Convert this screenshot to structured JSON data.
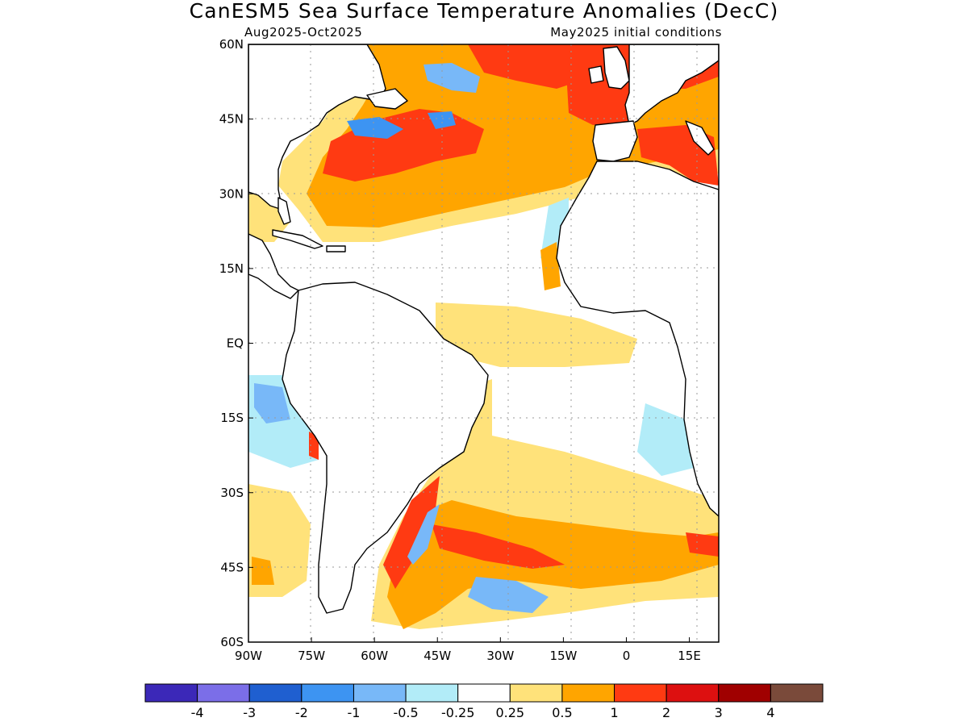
{
  "title": "CanESM5 Sea Surface Temperature Anomalies (DecC)",
  "subtitle_left": "Aug2025-Oct2025",
  "subtitle_right": "May2025 initial conditions",
  "map": {
    "lon_range": [
      -90,
      22
    ],
    "lat_range": [
      -60,
      60
    ],
    "lon_ticks": [
      {
        "value": -90,
        "label": "90W"
      },
      {
        "value": -75,
        "label": "75W"
      },
      {
        "value": -60,
        "label": "60W"
      },
      {
        "value": -45,
        "label": "45W"
      },
      {
        "value": -30,
        "label": "30W"
      },
      {
        "value": -15,
        "label": "15W"
      },
      {
        "value": 0,
        "label": "0"
      },
      {
        "value": 15,
        "label": "15E"
      }
    ],
    "lat_ticks": [
      {
        "value": 60,
        "label": "60N"
      },
      {
        "value": 45,
        "label": "45N"
      },
      {
        "value": 30,
        "label": "30N"
      },
      {
        "value": 15,
        "label": "15N"
      },
      {
        "value": 0,
        "label": "EQ"
      },
      {
        "value": -15,
        "label": "15S"
      },
      {
        "value": -30,
        "label": "30S"
      },
      {
        "value": -45,
        "label": "45S"
      },
      {
        "value": -60,
        "label": "60S"
      }
    ],
    "land_color": "#ffffff",
    "coastline_color": "#000000",
    "grid": true
  },
  "colorbar": {
    "colors": [
      "#3b28b8",
      "#7b6ee8",
      "#1f5fd0",
      "#3d94f2",
      "#78b8f8",
      "#b2ecf8",
      "#ffffff",
      "#ffe27a",
      "#ffa500",
      "#ff3a12",
      "#dd1010",
      "#a00000",
      "#7a4a3a"
    ],
    "labels": [
      "-4",
      "-3",
      "-2",
      "-1",
      "-0.5",
      "-0.25",
      "0.25",
      "0.5",
      "1",
      "2",
      "3",
      "4"
    ]
  }
}
